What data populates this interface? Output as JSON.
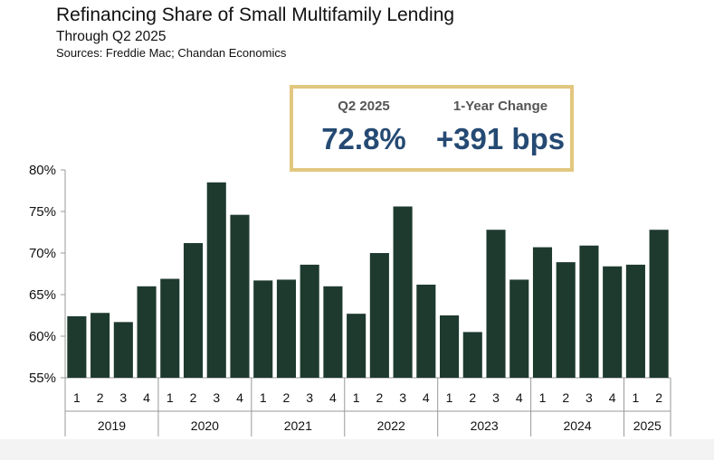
{
  "header": {
    "title": "Refinancing Share of Small Multifamily Lending",
    "subtitle": "Through Q2 2025",
    "sources": "Sources: Freddie Mac; Chandan Economics"
  },
  "kpis": [
    {
      "label": "Q2 2025",
      "value": "72.8%"
    },
    {
      "label": "1-Year Change",
      "value": "+391 bps"
    }
  ],
  "colors": {
    "bar": "#1e3a2f",
    "kpi_border": "#e2c77f",
    "kpi_value": "#254a73",
    "axis": "#999999"
  },
  "chart_data": {
    "type": "bar",
    "title": "Refinancing Share of Small Multifamily Lending",
    "subtitle": "Through Q2 2025",
    "ylim": [
      55,
      80
    ],
    "yticks": [
      55,
      60,
      65,
      70,
      75,
      80
    ],
    "ytick_labels": [
      "55%",
      "60%",
      "65%",
      "70%",
      "75%",
      "80%"
    ],
    "groups": [
      {
        "year": "2019",
        "quarters": [
          "1",
          "2",
          "3",
          "4"
        ],
        "values": [
          62.4,
          62.8,
          61.7,
          66.0
        ]
      },
      {
        "year": "2020",
        "quarters": [
          "1",
          "2",
          "3",
          "4"
        ],
        "values": [
          66.9,
          71.2,
          78.5,
          74.6
        ]
      },
      {
        "year": "2021",
        "quarters": [
          "1",
          "2",
          "3",
          "4"
        ],
        "values": [
          66.7,
          66.8,
          68.6,
          66.0
        ]
      },
      {
        "year": "2022",
        "quarters": [
          "1",
          "2",
          "3",
          "4"
        ],
        "values": [
          62.7,
          70.0,
          75.6,
          66.2
        ]
      },
      {
        "year": "2023",
        "quarters": [
          "1",
          "2",
          "3",
          "4"
        ],
        "values": [
          62.5,
          60.5,
          72.8,
          66.8
        ]
      },
      {
        "year": "2024",
        "quarters": [
          "1",
          "2",
          "3",
          "4"
        ],
        "values": [
          70.7,
          68.9,
          70.9,
          68.4
        ]
      },
      {
        "year": "2025",
        "quarters": [
          "1",
          "2"
        ],
        "values": [
          68.6,
          72.8
        ]
      }
    ],
    "grid": false,
    "legend": "none"
  }
}
